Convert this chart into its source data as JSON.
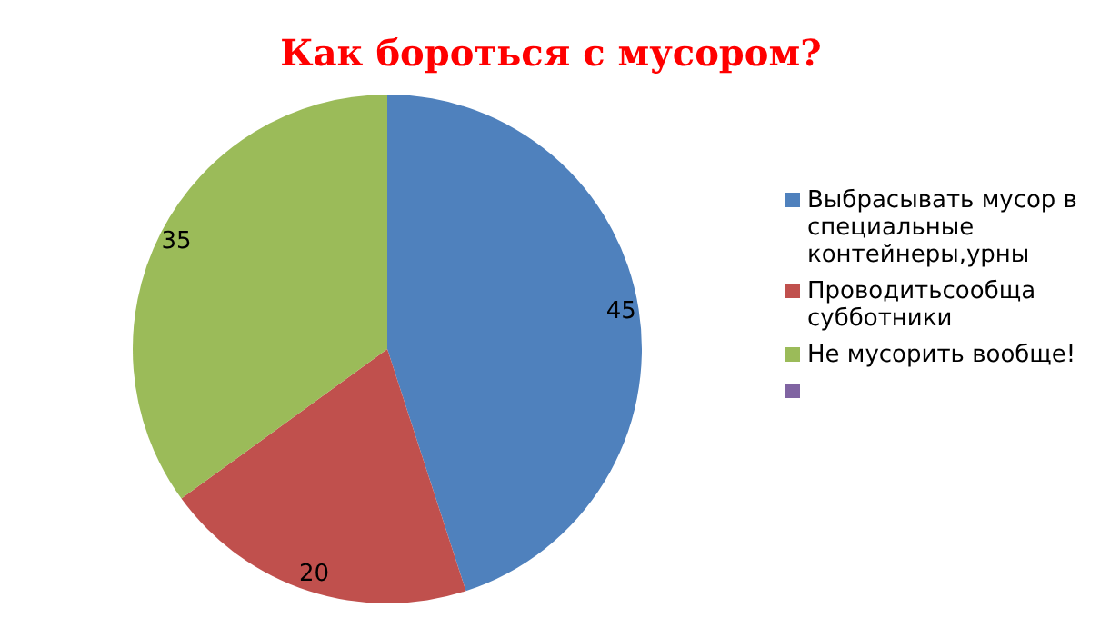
{
  "chart_data": {
    "type": "pie",
    "title": "Как бороться с мусором?",
    "categories": [
      "Выбрасывать мусор в специальные контейнеры,урны",
      "Проводитьсообща субботники",
      "Не мусорить вообще!",
      null
    ],
    "values": [
      45,
      20,
      35,
      null
    ],
    "colors": [
      "#4f81bd",
      "#c0504d",
      "#9bbb59",
      "#8064a2"
    ],
    "data_labels": true,
    "legend": "right"
  }
}
